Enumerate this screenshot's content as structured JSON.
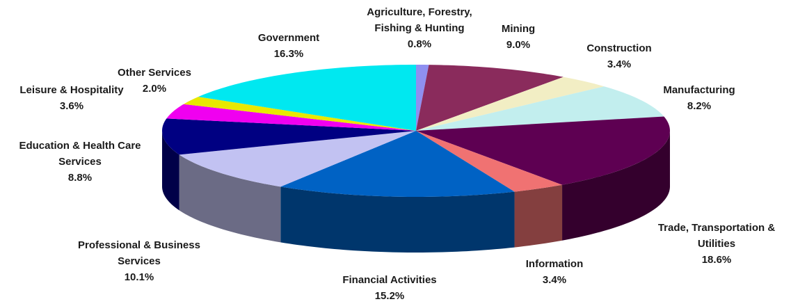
{
  "chart_data": {
    "type": "pie3d",
    "categories": [
      "Agriculture, Forestry, Fishing & Hunting",
      "Mining",
      "Construction",
      "Manufacturing",
      "Trade, Transportation & Utilities",
      "Information",
      "Financial Activities",
      "Professional & Business Services",
      "Education & Health Care Services",
      "Leisure & Hospitality",
      "Other Services",
      "Government"
    ],
    "values": [
      0.8,
      9.0,
      3.4,
      8.2,
      18.6,
      3.4,
      15.2,
      10.1,
      8.8,
      3.6,
      2.0,
      16.3
    ],
    "value_labels": [
      "0.8%",
      "9.0%",
      "3.4%",
      "8.2%",
      "18.6%",
      "3.4%",
      "15.2%",
      "10.1%",
      "8.8%",
      "3.6%",
      "2.0%",
      "16.3%"
    ],
    "colors": [
      "#8f8ff0",
      "#8a2b5c",
      "#f2eec4",
      "#c2eeee",
      "#5e0052",
      "#f07272",
      "#0062c4",
      "#c2c2f2",
      "#000082",
      "#f000f0",
      "#e8e800",
      "#00e8f0"
    ]
  }
}
